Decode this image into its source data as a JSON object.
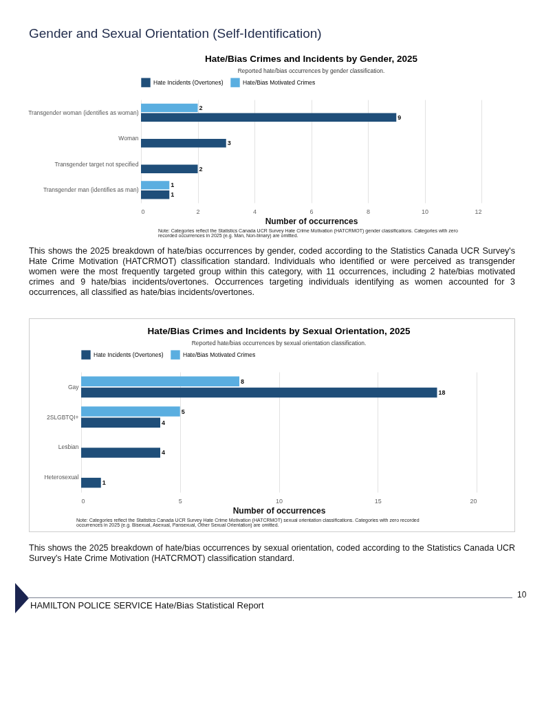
{
  "chart_data": [
    {
      "type": "bar",
      "orientation": "horizontal",
      "title": "Hate/Bias Crimes and Incidents by Gender, 2025",
      "subtitle": "Reported hate/bias occurrences by gender classification.",
      "xlabel": "Number of occurrences",
      "categories": [
        "Transgender woman (identifies as woman)",
        "Woman",
        "Transgender target not specified",
        "Transgender man (identifies as man)"
      ],
      "series": [
        {
          "name": "Hate Incidents (Overtones)",
          "color": "#1f4e79",
          "values": [
            9,
            3,
            2,
            1
          ]
        },
        {
          "name": "Hate/Bias Motivated Crimes",
          "color": "#5aaee0",
          "values": [
            2,
            null,
            null,
            1
          ]
        }
      ],
      "xlim": [
        0,
        12
      ],
      "xticks": [
        0,
        2,
        4,
        6,
        8,
        10,
        12
      ],
      "grid": "x",
      "legend": "top",
      "data_labels": true,
      "annotations": [
        "Gender and Sexual Orientation (Self-Identification)",
        "Note: Categories reflect the Statistics Canada UCR Survey Hate Crime Motivation (HATCRMOT) gender classifications. Categories with zero recorded occurrences in 2025 (e.g. Man, Non-binary) are omitted.",
        "This shows the 2025 breakdown of hate/bias occurrences by gender, coded according to the Statistics Canada UCR Survey's Hate Crime Motivation (HATCRMOT) classification standard. Individuals who identified or were perceived as transgender women were the most frequently targeted group within this category, with 11 occurrences, including 2 hate/bias motivated crimes and 9 hate/bias incidents/overtones. Occurrences targeting individuals identifying as women accounted for 3 occurrences, all classified as hate/bias incidents/overtones."
      ]
    },
    {
      "type": "bar",
      "orientation": "horizontal",
      "title": "Hate/Bias Crimes and Incidents by Sexual Orientation, 2025",
      "subtitle": "Reported hate/bias occurrences by sexual orientation classification.",
      "xlabel": "Number of occurrences",
      "categories": [
        "Gay",
        "2SLGBTQI+",
        "Lesbian",
        "Heterosexual"
      ],
      "series": [
        {
          "name": "Hate Incidents (Overtones)",
          "color": "#1f4e79",
          "values": [
            18,
            4,
            4,
            1
          ]
        },
        {
          "name": "Hate/Bias Motivated Crimes",
          "color": "#5aaee0",
          "values": [
            8,
            5,
            null,
            null
          ]
        }
      ],
      "xlim": [
        0,
        20
      ],
      "xticks": [
        0,
        5,
        10,
        15,
        20
      ],
      "grid": "x",
      "legend": "top",
      "data_labels": true,
      "annotations": [
        "Note: Categories reflect the Statistics Canada UCR Survey Hate Crime Motivation (HATCRMOT) sexual orientation classifications. Categories with zero recorded occurrences in 2025 (e.g. Bisexual, Asexual, Pansexual, Other Sexual Orientation) are omitted.",
        "This shows the 2025 breakdown of hate/bias occurrences by sexual orientation, coded according to the Statistics Canada UCR Survey's Hate Crime Motivation (HATCRMOT) classification standard.",
        "HAMILTON POLICE SERVICE Hate/Bias Statistical Report",
        "10"
      ]
    }
  ]
}
